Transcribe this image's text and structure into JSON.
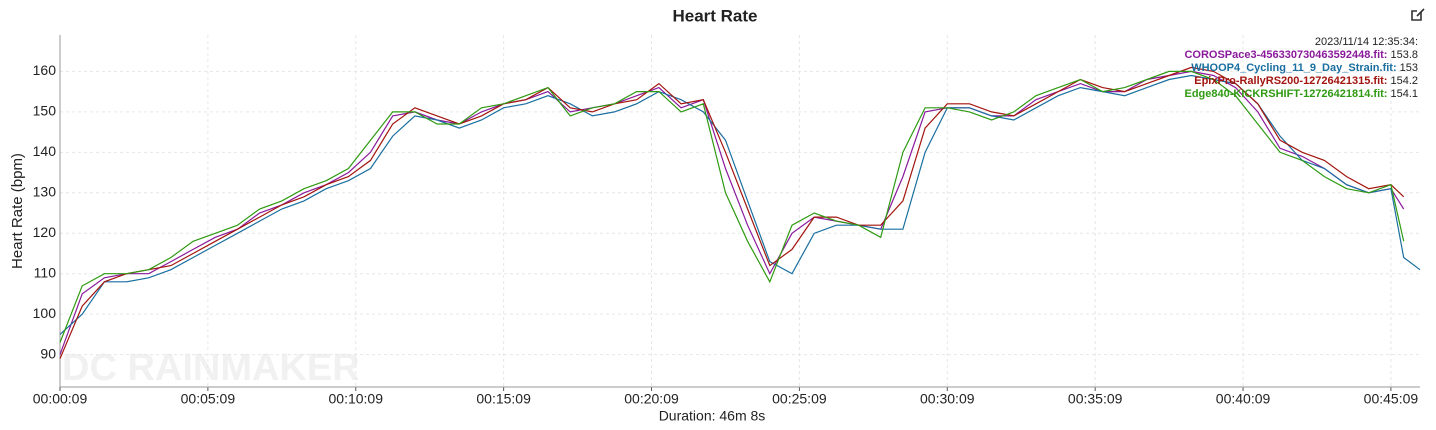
{
  "chart_data": {
    "type": "line",
    "title": "Heart Rate",
    "y_label": "Heart Rate (bpm)",
    "x_label": "Duration: 46m 8s",
    "watermark": "DC RAINMAKER",
    "tooltip": {
      "time": "2023/11/14 12:35:34:",
      "values": [
        153.8,
        153,
        154.2,
        154.1
      ]
    },
    "x": [
      9,
      54,
      99,
      144,
      189,
      234,
      279,
      324,
      369,
      414,
      459,
      504,
      549,
      594,
      639,
      684,
      729,
      774,
      819,
      864,
      909,
      954,
      999,
      1044,
      1089,
      1134,
      1179,
      1224,
      1269,
      1314,
      1359,
      1404,
      1449,
      1494,
      1539,
      1584,
      1629,
      1674,
      1719,
      1764,
      1809,
      1854,
      1899,
      1944,
      1989,
      2034,
      2079,
      2124,
      2169,
      2214,
      2259,
      2304,
      2349,
      2394,
      2439,
      2484,
      2529,
      2574,
      2619,
      2664,
      2709,
      2735,
      2768
    ],
    "series": [
      {
        "name": "COROSPace3-456330730463592448.fit:",
        "color": "#8a1a9b",
        "values": [
          90,
          105,
          109,
          110,
          110,
          113,
          116,
          119,
          121,
          125,
          127,
          130,
          132,
          135,
          140,
          149,
          150,
          148,
          147,
          150,
          152,
          153,
          155,
          150,
          151,
          152,
          154,
          156,
          151,
          153,
          136,
          122,
          110,
          120,
          124,
          123,
          122,
          121,
          134,
          150,
          151,
          151,
          149,
          149,
          153,
          155,
          157,
          155,
          155,
          158,
          159,
          160,
          159,
          156,
          150,
          141,
          139,
          136,
          132,
          130,
          131,
          126,
          null
        ]
      },
      {
        "name": "WHOOP4_Cycling_11_9_Day_Strain.fit:",
        "color": "#1a6fa0",
        "values": [
          95,
          100,
          108,
          108,
          109,
          111,
          114,
          117,
          120,
          123,
          126,
          128,
          131,
          133,
          136,
          144,
          149,
          148,
          146,
          148,
          151,
          152,
          154,
          152,
          149,
          150,
          152,
          155,
          153,
          150,
          143,
          128,
          113,
          110,
          120,
          122,
          122,
          121,
          121,
          140,
          151,
          151,
          149,
          148,
          151,
          154,
          156,
          155,
          154,
          156,
          158,
          159,
          158,
          157,
          152,
          144,
          138,
          136,
          132,
          130,
          131,
          114,
          111
        ]
      },
      {
        "name": "EpixPro-RallyRS200-12726421315.fit:",
        "color": "#a3150f",
        "values": [
          89,
          102,
          108,
          110,
          111,
          112,
          115,
          118,
          121,
          124,
          127,
          129,
          132,
          134,
          138,
          147,
          151,
          149,
          147,
          149,
          152,
          153,
          156,
          151,
          150,
          152,
          153,
          157,
          152,
          153,
          140,
          126,
          112,
          116,
          124,
          124,
          122,
          122,
          128,
          146,
          152,
          152,
          150,
          149,
          152,
          155,
          158,
          156,
          155,
          157,
          159,
          161,
          160,
          157,
          152,
          143,
          140,
          138,
          134,
          131,
          132,
          129,
          null
        ]
      },
      {
        "name": "Edge840-KICKRSHIFT-12726421814.fit:",
        "color": "#2f9a12",
        "values": [
          93,
          107,
          110,
          110,
          111,
          114,
          118,
          120,
          122,
          126,
          128,
          131,
          133,
          136,
          143,
          150,
          150,
          147,
          147,
          151,
          152,
          154,
          156,
          149,
          151,
          152,
          155,
          155,
          150,
          152,
          130,
          118,
          108,
          122,
          125,
          123,
          122,
          119,
          140,
          151,
          151,
          150,
          148,
          150,
          154,
          156,
          158,
          155,
          156,
          158,
          160,
          160,
          158,
          154,
          147,
          140,
          138,
          134,
          131,
          130,
          132,
          118,
          null
        ]
      }
    ],
    "xlim": [
      9,
      2768
    ],
    "ylim": [
      82,
      169
    ],
    "xticks": [
      {
        "value": 9,
        "label": "00:00:09"
      },
      {
        "value": 309,
        "label": "00:05:09"
      },
      {
        "value": 609,
        "label": "00:10:09"
      },
      {
        "value": 909,
        "label": "00:15:09"
      },
      {
        "value": 1209,
        "label": "00:20:09"
      },
      {
        "value": 1509,
        "label": "00:25:09"
      },
      {
        "value": 1809,
        "label": "00:30:09"
      },
      {
        "value": 2109,
        "label": "00:35:09"
      },
      {
        "value": 2409,
        "label": "00:40:09"
      },
      {
        "value": 2709,
        "label": "00:45:09"
      }
    ],
    "yticks": [
      90,
      100,
      110,
      120,
      130,
      140,
      150,
      160
    ],
    "grid": true
  }
}
